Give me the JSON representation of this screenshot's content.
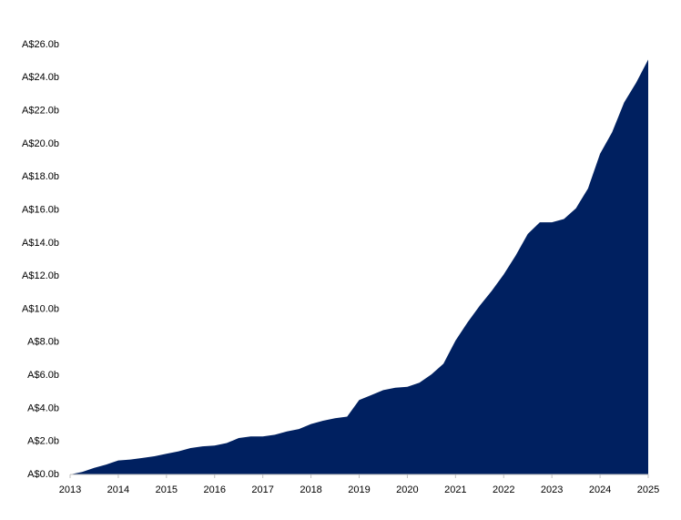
{
  "chart_data": {
    "type": "area",
    "x": [
      2013,
      2013.25,
      2013.5,
      2013.75,
      2014,
      2014.25,
      2014.5,
      2014.75,
      2015,
      2015.25,
      2015.5,
      2015.75,
      2016,
      2016.25,
      2016.5,
      2016.75,
      2017,
      2017.25,
      2017.5,
      2017.75,
      2018,
      2018.25,
      2018.5,
      2018.75,
      2019,
      2019.25,
      2019.5,
      2019.75,
      2020,
      2020.25,
      2020.5,
      2020.75,
      2021,
      2021.25,
      2021.5,
      2021.75,
      2022,
      2022.25,
      2022.5,
      2022.75,
      2023,
      2023.25,
      2023.5,
      2023.75,
      2024,
      2024.25,
      2024.5,
      2024.75,
      2025
    ],
    "values": [
      0,
      0.15,
      0.4,
      0.6,
      0.85,
      0.9,
      1.0,
      1.1,
      1.25,
      1.4,
      1.6,
      1.7,
      1.75,
      1.9,
      2.2,
      2.3,
      2.3,
      2.4,
      2.6,
      2.75,
      3.05,
      3.25,
      3.4,
      3.5,
      4.5,
      4.8,
      5.1,
      5.25,
      5.3,
      5.55,
      6.05,
      6.7,
      8.1,
      9.2,
      10.2,
      11.1,
      12.1,
      13.25,
      14.55,
      15.25,
      15.25,
      15.45,
      16.1,
      17.3,
      19.4,
      20.7,
      22.5,
      23.7,
      25.1
    ],
    "color": "#002060",
    "xlim": [
      2013,
      2025
    ],
    "xticks": [
      2013,
      2014,
      2015,
      2016,
      2017,
      2018,
      2019,
      2020,
      2021,
      2022,
      2023,
      2024,
      2025
    ],
    "ylim": [
      0,
      26
    ],
    "yticks": [
      {
        "value": 0,
        "label": "A$0.0b"
      },
      {
        "value": 2,
        "label": "A$2.0b"
      },
      {
        "value": 4,
        "label": "A$4.0b"
      },
      {
        "value": 6,
        "label": "A$6.0b"
      },
      {
        "value": 8,
        "label": "A$8.0b"
      },
      {
        "value": 10,
        "label": "A$10.0b"
      },
      {
        "value": 12,
        "label": "A$12.0b"
      },
      {
        "value": 14,
        "label": "A$14.0b"
      },
      {
        "value": 16,
        "label": "A$16.0b"
      },
      {
        "value": 18,
        "label": "A$18.0b"
      },
      {
        "value": 20,
        "label": "A$20.0b"
      },
      {
        "value": 22,
        "label": "A$22.0b"
      },
      {
        "value": 24,
        "label": "A$24.0b"
      },
      {
        "value": 26,
        "label": "A$26.0b"
      }
    ],
    "grid": false
  }
}
